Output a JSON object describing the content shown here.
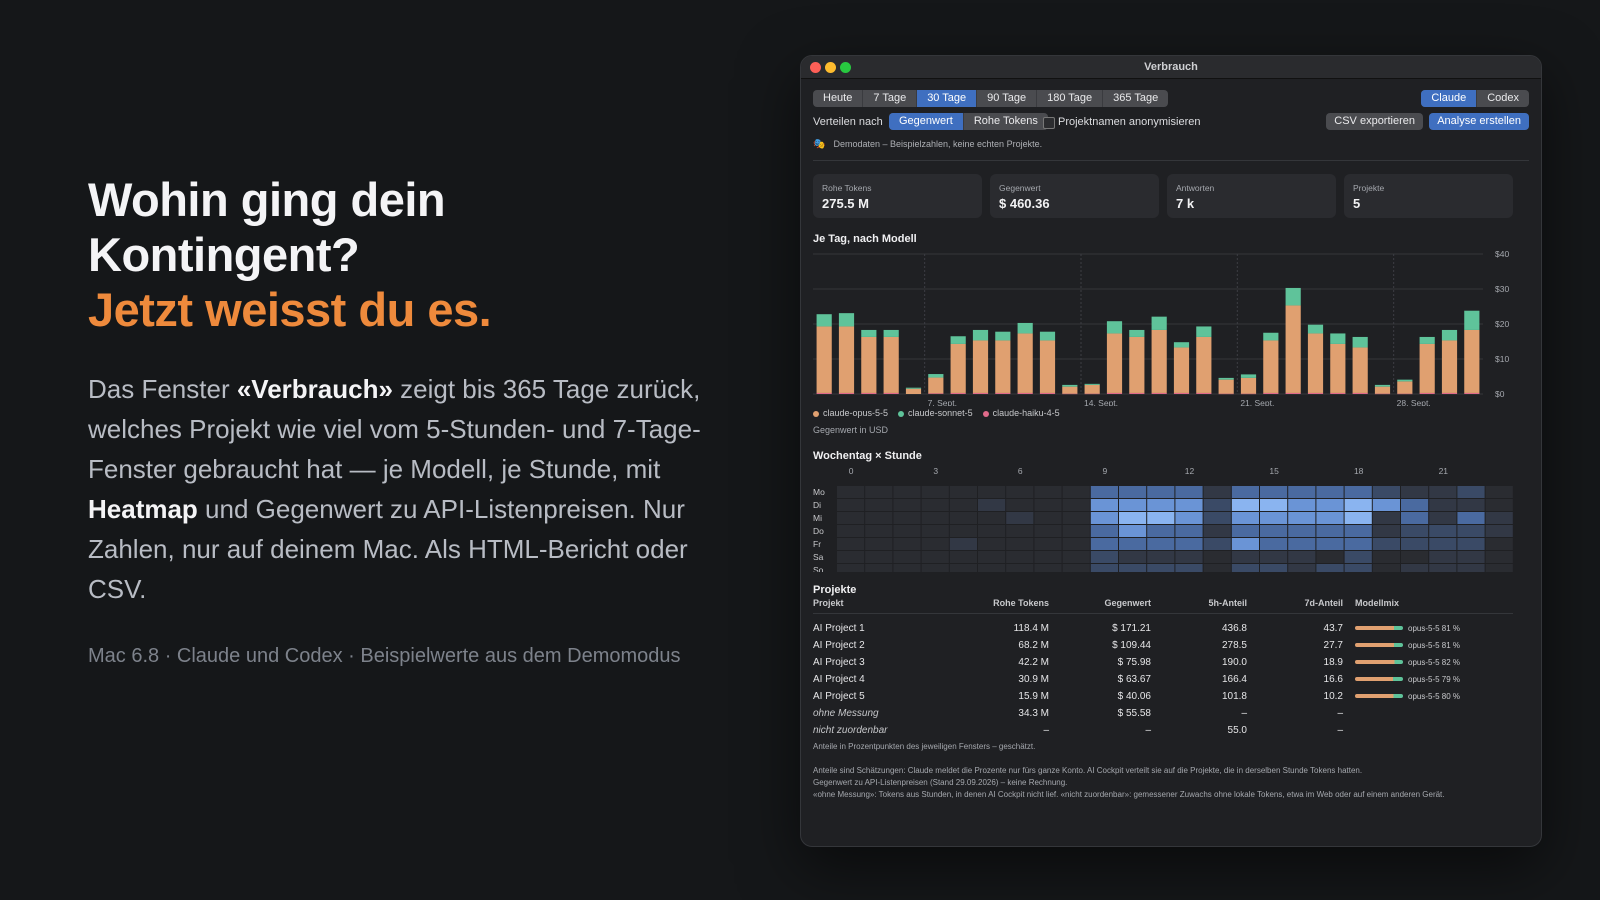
{
  "hero": {
    "title": "Wohin ging dein Kontingent?",
    "subtitle": "Jetzt weisst du es.",
    "body": [
      {
        "t": "Das Fenster ",
        "b": false
      },
      {
        "t": "«Verbrauch»",
        "b": true
      },
      {
        "t": " zeigt bis 365 Tage zurück, welches Projekt wie viel vom 5-Stunden- und 7-Tage-Fenster gebraucht hat — je Modell, je Stunde, mit ",
        "b": false
      },
      {
        "t": "Heatmap",
        "b": true
      },
      {
        "t": " und Gegenwert zu API-Listenpreisen. Nur Zahlen, nur auf deinem Mac. Als HTML-Bericht oder CSV.",
        "b": false
      }
    ],
    "meta": "Mac 6.8 · Claude und Codex · Beispielwerte aus dem Demomodus"
  },
  "window": {
    "title": "Verbrauch",
    "ranges": [
      "Heute",
      "7 Tage",
      "30 Tage",
      "90 Tage",
      "180 Tage",
      "365 Tage"
    ],
    "range_selected": "30 Tage",
    "providers": [
      "Claude",
      "Codex"
    ],
    "provider_selected": "Claude",
    "distribute_label": "Verteilen nach",
    "distribute_options": [
      "Gegenwert",
      "Rohe Tokens"
    ],
    "distribute_selected": "Gegenwert",
    "anonymize_label": "Projektnamen anonymisieren",
    "anonymize_checked": false,
    "export_label": "CSV exportieren",
    "analyze_label": "Analyse erstellen",
    "demo_icon": "mask-icon",
    "demo_note": "Demodaten – Beispielzahlen, keine echten Projekte.",
    "stats": [
      {
        "label": "Rohe Tokens",
        "value": "275.5 M"
      },
      {
        "label": "Gegenwert",
        "value": "$ 460.36"
      },
      {
        "label": "Antworten",
        "value": "7 k"
      },
      {
        "label": "Projekte",
        "value": "5"
      }
    ],
    "daily_title": "Je Tag, nach Modell",
    "daily_caption": "Gegenwert in USD",
    "heatmap_title": "Wochentag × Stunde",
    "projects_title": "Projekte",
    "projects_note": "Anteile in Prozentpunkten des jeweiligen Fensters – geschätzt.",
    "footnotes": [
      "Anteile sind Schätzungen: Claude meldet die Prozente nur fürs ganze Konto. AI Cockpit verteilt sie auf die Projekte, die in derselben Stunde Tokens hatten.",
      "Gegenwert zu API-Listenpreisen (Stand 29.09.2026) – keine Rechnung.",
      "«ohne Messung»: Tokens aus Stunden, in denen AI Cockpit nicht lief. «nicht zuordenbar»: gemessener Zuwachs ohne lokale Tokens, etwa im Web oder auf einem anderen Gerät."
    ],
    "table": {
      "headers": [
        "Projekt",
        "Rohe Tokens",
        "Gegenwert",
        "5h-Anteil",
        "7d-Anteil",
        "Modellmix"
      ],
      "rows": [
        {
          "name": "AI Project 1",
          "tokens": "118.4 M",
          "value": "$ 171.21",
          "h5": "436.8",
          "d7": "43.7",
          "mix": "opus-5-5 81 %",
          "mix_pct": 81,
          "italic": false
        },
        {
          "name": "AI Project 2",
          "tokens": "68.2 M",
          "value": "$ 109.44",
          "h5": "278.5",
          "d7": "27.7",
          "mix": "opus-5-5 81 %",
          "mix_pct": 81,
          "italic": false
        },
        {
          "name": "AI Project 3",
          "tokens": "42.2 M",
          "value": "$ 75.98",
          "h5": "190.0",
          "d7": "18.9",
          "mix": "opus-5-5 82 %",
          "mix_pct": 82,
          "italic": false
        },
        {
          "name": "AI Project 4",
          "tokens": "30.9 M",
          "value": "$ 63.67",
          "h5": "166.4",
          "d7": "16.6",
          "mix": "opus-5-5 79 %",
          "mix_pct": 79,
          "italic": false
        },
        {
          "name": "AI Project 5",
          "tokens": "15.9 M",
          "value": "$ 40.06",
          "h5": "101.8",
          "d7": "10.2",
          "mix": "opus-5-5 80 %",
          "mix_pct": 80,
          "italic": false
        },
        {
          "name": "ohne Messung",
          "tokens": "34.3 M",
          "value": "$ 55.58",
          "h5": "–",
          "d7": "–",
          "mix": "",
          "mix_pct": null,
          "italic": true
        },
        {
          "name": "nicht zuordenbar",
          "tokens": "–",
          "value": "–",
          "h5": "55.0",
          "d7": "–",
          "mix": "",
          "mix_pct": null,
          "italic": true
        }
      ]
    },
    "colors": {
      "opus": "#e0a070",
      "sonnet": "#5fc39a",
      "haiku": "#e06a8a",
      "accent": "#3f6fc0",
      "hero_accent": "#ee8a3c"
    }
  },
  "chart_data": [
    {
      "type": "bar",
      "stacked": true,
      "title": "Je Tag, nach Modell",
      "ylabel": "Gegenwert in USD",
      "ylim": [
        0,
        40
      ],
      "y_ticks": [
        "$0",
        "$10",
        "$20",
        "$30",
        "$40"
      ],
      "x_tick_labels": [
        {
          "index": 5,
          "label": "7. Sept."
        },
        {
          "index": 12,
          "label": "14. Sept."
        },
        {
          "index": 19,
          "label": "21. Sept."
        },
        {
          "index": 26,
          "label": "28. Sept."
        }
      ],
      "series": [
        {
          "name": "claude-opus-5-5",
          "color": "#e0a070",
          "values": [
            19,
            19,
            16,
            16,
            1.5,
            4.5,
            14,
            15,
            15,
            17,
            15,
            2,
            2.5,
            17,
            16,
            18,
            13,
            16,
            4,
            4.5,
            15,
            25,
            17,
            14,
            13,
            2,
            3.5,
            14,
            15,
            18
          ]
        },
        {
          "name": "claude-sonnet-5",
          "color": "#5fc39a",
          "values": [
            3.5,
            3.8,
            2,
            2,
            0.3,
            1,
            2.2,
            3,
            2.5,
            3,
            2.5,
            0.5,
            0.3,
            3.5,
            2,
            3.8,
            1.5,
            3,
            0.5,
            1,
            2.2,
            5,
            2.5,
            3,
            3,
            0.5,
            0.5,
            2,
            3,
            5.5
          ]
        },
        {
          "name": "claude-haiku-4-5",
          "color": "#e06a8a",
          "values": [
            0.3,
            0.3,
            0.3,
            0.3,
            0,
            0.2,
            0.3,
            0.3,
            0.3,
            0.3,
            0.3,
            0.1,
            0.1,
            0.3,
            0.3,
            0.3,
            0.3,
            0.3,
            0.1,
            0.1,
            0.3,
            0.3,
            0.3,
            0.3,
            0.3,
            0.1,
            0.1,
            0.3,
            0.3,
            0.3
          ]
        }
      ]
    },
    {
      "type": "heatmap",
      "title": "Wochentag × Stunde",
      "rows": [
        "Mo",
        "Di",
        "Mi",
        "Do",
        "Fr",
        "Sa",
        "So"
      ],
      "x_tick_labels": [
        "0",
        "3",
        "6",
        "9",
        "12",
        "15",
        "18",
        "21"
      ],
      "x_tick_hours": [
        0,
        3,
        6,
        9,
        12,
        15,
        18,
        21
      ],
      "values": [
        [
          0,
          0,
          0,
          0,
          0,
          0,
          0,
          0,
          0,
          3,
          3,
          3,
          3,
          1,
          3,
          3,
          3,
          3,
          3,
          2,
          1,
          1,
          2,
          0
        ],
        [
          0,
          0,
          0,
          0,
          0,
          1,
          0,
          0,
          0,
          4,
          4,
          4,
          4,
          2,
          5,
          5,
          4,
          4,
          5,
          4,
          3,
          1,
          1,
          0
        ],
        [
          0,
          0,
          0,
          0,
          0,
          0,
          1,
          0,
          0,
          4,
          5,
          5,
          4,
          2,
          4,
          4,
          4,
          4,
          5,
          1,
          3,
          1,
          3,
          1
        ],
        [
          0,
          0,
          0,
          0,
          0,
          0,
          0,
          0,
          0,
          3,
          4,
          3,
          3,
          1,
          3,
          3,
          3,
          3,
          3,
          1,
          2,
          2,
          2,
          1
        ],
        [
          0,
          0,
          0,
          0,
          1,
          0,
          0,
          0,
          0,
          3,
          3,
          3,
          3,
          2,
          4,
          3,
          3,
          3,
          3,
          2,
          2,
          2,
          2,
          0
        ],
        [
          0,
          0,
          0,
          0,
          0,
          0,
          0,
          0,
          0,
          2,
          1,
          1,
          1,
          0,
          1,
          1,
          1,
          0,
          2,
          0,
          0,
          1,
          1,
          0
        ],
        [
          0,
          0,
          0,
          0,
          0,
          0,
          0,
          0,
          0,
          2,
          2,
          2,
          2,
          0,
          2,
          2,
          1,
          2,
          2,
          0,
          1,
          1,
          1,
          0
        ]
      ]
    }
  ]
}
